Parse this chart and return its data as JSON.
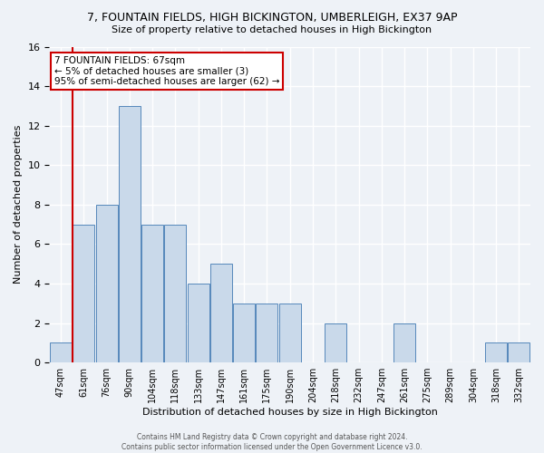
{
  "title": "7, FOUNTAIN FIELDS, HIGH BICKINGTON, UMBERLEIGH, EX37 9AP",
  "subtitle": "Size of property relative to detached houses in High Bickington",
  "xlabel": "Distribution of detached houses by size in High Bickington",
  "ylabel": "Number of detached properties",
  "categories": [
    "47sqm",
    "61sqm",
    "76sqm",
    "90sqm",
    "104sqm",
    "118sqm",
    "133sqm",
    "147sqm",
    "161sqm",
    "175sqm",
    "190sqm",
    "204sqm",
    "218sqm",
    "232sqm",
    "247sqm",
    "261sqm",
    "275sqm",
    "289sqm",
    "304sqm",
    "318sqm",
    "332sqm"
  ],
  "values": [
    1,
    7,
    8,
    13,
    7,
    7,
    4,
    5,
    3,
    3,
    3,
    0,
    2,
    0,
    0,
    2,
    0,
    0,
    0,
    1,
    1
  ],
  "bar_color": "#c9d9ea",
  "bar_edge_color": "#5588bb",
  "red_line_x": 1.0,
  "annotation_title": "7 FOUNTAIN FIELDS: 67sqm",
  "annotation_line1": "← 5% of detached houses are smaller (3)",
  "annotation_line2": "95% of semi-detached houses are larger (62) →",
  "annotation_box_color": "#ffffff",
  "annotation_box_edge_color": "#cc0000",
  "red_line_color": "#cc0000",
  "ylim": [
    0,
    16
  ],
  "yticks": [
    0,
    2,
    4,
    6,
    8,
    10,
    12,
    14,
    16
  ],
  "footer1": "Contains HM Land Registry data © Crown copyright and database right 2024.",
  "footer2": "Contains public sector information licensed under the Open Government Licence v3.0.",
  "background_color": "#eef2f7",
  "grid_color": "#ffffff"
}
